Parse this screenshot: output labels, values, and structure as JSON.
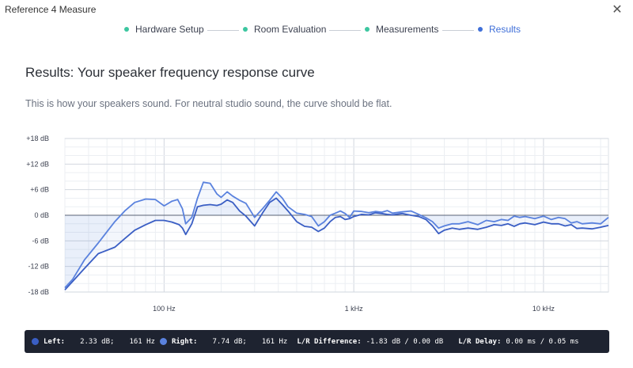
{
  "window": {
    "title": "Reference 4 Measure",
    "close_glyph": "✕"
  },
  "steps": [
    {
      "label": "Hardware Setup",
      "status": "done",
      "color": "#3cc6a0"
    },
    {
      "label": "Room Evaluation",
      "status": "done",
      "color": "#3cc6a0"
    },
    {
      "label": "Measurements",
      "status": "done",
      "color": "#3cc6a0"
    },
    {
      "label": "Results",
      "status": "active",
      "color": "#3f6fd8"
    }
  ],
  "page": {
    "heading": "Results: Your speaker frequency response curve",
    "description": "This is how your speakers sound. For neutral studio sound, the curve should be flat."
  },
  "chart_data": {
    "type": "line",
    "x_scale": "log",
    "x_range": [
      30,
      22000
    ],
    "y_range": [
      -18,
      18
    ],
    "y_unit": "dB",
    "y_ticks": [
      {
        "v": 18,
        "label": "+18 dB"
      },
      {
        "v": 12,
        "label": "+12 dB"
      },
      {
        "v": 6,
        "label": "+6 dB"
      },
      {
        "v": 0,
        "label": "0 dB"
      },
      {
        "v": -6,
        "label": "-6 dB"
      },
      {
        "v": -12,
        "label": "-12 dB"
      },
      {
        "v": -18,
        "label": "-18 dB"
      }
    ],
    "x_ticks": [
      {
        "v": 100,
        "label": "100 Hz"
      },
      {
        "v": 1000,
        "label": "1 kHz"
      },
      {
        "v": 10000,
        "label": "10 kHz"
      }
    ],
    "grid": true,
    "series": [
      {
        "name": "Left",
        "color": "#3a5ec4",
        "x": [
          30,
          33,
          38,
          45,
          55,
          62,
          70,
          80,
          90,
          100,
          110,
          120,
          125,
          130,
          140,
          150,
          161,
          175,
          190,
          200,
          215,
          230,
          250,
          270,
          300,
          330,
          360,
          390,
          420,
          450,
          500,
          550,
          600,
          650,
          700,
          750,
          800,
          850,
          900,
          950,
          1000,
          1100,
          1200,
          1300,
          1400,
          1500,
          1600,
          1800,
          2000,
          2200,
          2400,
          2600,
          2800,
          3000,
          3300,
          3600,
          4000,
          4500,
          5000,
          5500,
          6000,
          6500,
          7000,
          7500,
          8000,
          9000,
          10000,
          11000,
          12000,
          13000,
          14000,
          15000,
          16000,
          18000,
          20000,
          22000
        ],
        "y": [
          -17.5,
          -15.5,
          -12.5,
          -9,
          -7.5,
          -5.5,
          -3.5,
          -2.2,
          -1.2,
          -1.2,
          -1.6,
          -2.2,
          -3.0,
          -4.5,
          -2.0,
          2.0,
          2.33,
          2.5,
          2.3,
          2.6,
          3.6,
          3.0,
          1.0,
          -0.2,
          -2.5,
          0.5,
          3.0,
          4.0,
          2.5,
          1.0,
          -1.5,
          -2.6,
          -2.8,
          -3.8,
          -3.0,
          -1.5,
          -0.5,
          -0.3,
          -1.0,
          -0.8,
          -0.3,
          0.2,
          0.1,
          0.6,
          0.4,
          0.2,
          0.1,
          0.4,
          0.0,
          -0.3,
          -1.0,
          -2.5,
          -4.3,
          -3.5,
          -3.0,
          -3.3,
          -3.0,
          -3.3,
          -2.8,
          -2.2,
          -2.4,
          -2.0,
          -2.6,
          -2.0,
          -1.8,
          -2.2,
          -1.6,
          -2.0,
          -2.0,
          -2.5,
          -2.2,
          -3.1,
          -3.0,
          -3.2,
          -2.8,
          -2.4
        ]
      },
      {
        "name": "Right",
        "color": "#5a82de",
        "x": [
          30,
          33,
          38,
          45,
          55,
          62,
          70,
          80,
          90,
          100,
          110,
          118,
          125,
          130,
          140,
          150,
          161,
          175,
          190,
          200,
          215,
          230,
          250,
          270,
          300,
          330,
          360,
          390,
          420,
          450,
          500,
          550,
          600,
          650,
          700,
          750,
          800,
          850,
          900,
          950,
          1000,
          1100,
          1200,
          1300,
          1400,
          1500,
          1600,
          1800,
          2000,
          2200,
          2400,
          2600,
          2800,
          3000,
          3300,
          3600,
          4000,
          4500,
          5000,
          5500,
          6000,
          6500,
          7000,
          7500,
          8000,
          9000,
          10000,
          11000,
          12000,
          13000,
          14000,
          15000,
          16000,
          18000,
          20000,
          22000
        ],
        "y": [
          -17.0,
          -15.0,
          -10.5,
          -6.5,
          -1.5,
          1.0,
          3.0,
          3.8,
          3.7,
          2.2,
          3.3,
          3.7,
          1.5,
          -2.0,
          -0.5,
          4.0,
          7.74,
          7.5,
          5.0,
          4.2,
          5.5,
          4.5,
          3.5,
          2.8,
          -0.5,
          1.5,
          3.5,
          5.5,
          4.0,
          2.0,
          0.5,
          0.2,
          -0.3,
          -2.5,
          -1.5,
          0.0,
          0.5,
          1.0,
          0.4,
          -0.5,
          1.0,
          0.9,
          0.6,
          0.9,
          0.7,
          1.1,
          0.5,
          0.8,
          1.0,
          0.2,
          -0.6,
          -1.5,
          -3.0,
          -2.5,
          -2.0,
          -2.0,
          -1.5,
          -2.2,
          -1.2,
          -1.5,
          -1.0,
          -1.2,
          -0.2,
          -0.5,
          -0.3,
          -0.8,
          -0.2,
          -1.0,
          -0.5,
          -0.8,
          -1.8,
          -1.5,
          -2.0,
          -1.8,
          -2.0,
          -0.5
        ]
      }
    ]
  },
  "status": {
    "left_label": "Left:",
    "left_db": "2.33 dB;",
    "left_hz": "161 Hz",
    "left_color": "#3a5ec4",
    "right_label": "Right:",
    "right_db": "7.74 dB;",
    "right_hz": "161 Hz",
    "right_color": "#5a82de",
    "diff_label": "L/R Difference:",
    "diff_value": "-1.83 dB / 0.00 dB",
    "delay_label": "L/R Delay:",
    "delay_value": "0.00 ms / 0.05 ms"
  }
}
